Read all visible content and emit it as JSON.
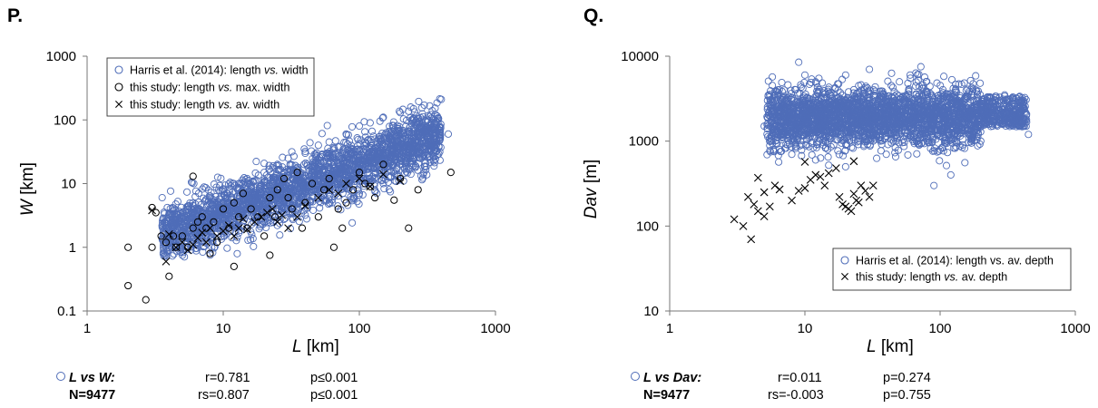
{
  "chart_data": [
    {
      "panel": "P.",
      "type": "scatter",
      "xscale": "log",
      "yscale": "log",
      "xlim": [
        1,
        1000
      ],
      "ylim": [
        0.1,
        1000
      ],
      "xticks": [
        "1",
        "10",
        "100",
        "1000"
      ],
      "yticks": [
        "0.1",
        "1",
        "10",
        "100",
        "1000"
      ],
      "xlabel": "L",
      "xlabel_unit": "[km]",
      "ylabel": "W",
      "ylabel_unit": "[km]",
      "legend_position": "top-left",
      "series": [
        {
          "name_parts": [
            "Harris et al. (2014): length ",
            "vs.",
            " width"
          ],
          "marker": "open-circle",
          "color": "#4f6db8",
          "description_of_cloud": "dense cloud, approx. L 4-450 km, W 0.7-220 km",
          "points": [
            [
              5,
              3.2
            ],
            [
              6,
              4.5
            ],
            [
              8,
              6
            ],
            [
              10,
              8
            ],
            [
              12,
              10
            ],
            [
              15,
              12
            ],
            [
              20,
              15
            ],
            [
              25,
              20
            ],
            [
              30,
              25
            ],
            [
              40,
              30
            ],
            [
              50,
              40
            ],
            [
              60,
              45
            ],
            [
              80,
              60
            ],
            [
              100,
              80
            ],
            [
              120,
              90
            ],
            [
              150,
              110
            ],
            [
              200,
              130
            ],
            [
              250,
              150
            ],
            [
              300,
              170
            ],
            [
              400,
              210
            ],
            [
              5,
              1.5
            ],
            [
              8,
              2.2
            ],
            [
              12,
              2.5
            ],
            [
              20,
              3
            ],
            [
              30,
              4
            ],
            [
              50,
              6
            ],
            [
              80,
              9
            ],
            [
              120,
              12
            ],
            [
              200,
              20
            ],
            [
              300,
              35
            ],
            [
              10,
              1.8
            ],
            [
              15,
              2
            ],
            [
              25,
              2.2
            ],
            [
              40,
              3.2
            ],
            [
              60,
              5
            ],
            [
              100,
              7
            ],
            [
              150,
              10
            ],
            [
              250,
              25
            ],
            [
              350,
              50
            ],
            [
              450,
              60
            ],
            [
              7,
              3.5
            ],
            [
              9,
              4
            ],
            [
              11,
              5
            ],
            [
              14,
              6
            ],
            [
              18,
              7
            ],
            [
              22,
              9
            ],
            [
              28,
              11
            ],
            [
              35,
              14
            ],
            [
              45,
              18
            ],
            [
              55,
              22
            ],
            [
              65,
              25
            ],
            [
              75,
              30
            ],
            [
              90,
              35
            ],
            [
              110,
              45
            ],
            [
              130,
              50
            ],
            [
              160,
              60
            ],
            [
              180,
              70
            ],
            [
              220,
              80
            ],
            [
              270,
              90
            ],
            [
              320,
              100
            ]
          ]
        },
        {
          "name_parts": [
            "this study: length ",
            "vs.",
            " max. width"
          ],
          "marker": "open-circle",
          "color": "#000000",
          "points": [
            [
              2,
              0.25
            ],
            [
              2,
              1
            ],
            [
              2.7,
              0.15
            ],
            [
              3,
              1
            ],
            [
              3,
              4.2
            ],
            [
              3.2,
              3.5
            ],
            [
              3.5,
              1.5
            ],
            [
              3.8,
              1.2
            ],
            [
              4,
              0.35
            ],
            [
              4.3,
              1.5
            ],
            [
              4.5,
              1
            ],
            [
              5,
              1.5
            ],
            [
              5.5,
              1
            ],
            [
              6,
              13
            ],
            [
              6,
              2
            ],
            [
              6.5,
              2.5
            ],
            [
              7,
              3
            ],
            [
              7.5,
              2
            ],
            [
              8,
              0.8
            ],
            [
              8.5,
              2.5
            ],
            [
              9,
              1.2
            ],
            [
              10,
              4
            ],
            [
              11,
              2
            ],
            [
              12,
              0.5
            ],
            [
              12,
              5
            ],
            [
              13,
              3
            ],
            [
              14,
              7
            ],
            [
              15,
              2
            ],
            [
              16,
              4
            ],
            [
              18,
              3
            ],
            [
              20,
              1.5
            ],
            [
              22,
              0.75
            ],
            [
              22,
              6
            ],
            [
              24,
              3
            ],
            [
              25,
              8
            ],
            [
              28,
              12
            ],
            [
              30,
              6
            ],
            [
              32,
              4
            ],
            [
              35,
              15
            ],
            [
              38,
              2
            ],
            [
              40,
              5
            ],
            [
              45,
              10
            ],
            [
              50,
              3
            ],
            [
              55,
              8
            ],
            [
              60,
              12
            ],
            [
              65,
              1
            ],
            [
              70,
              4
            ],
            [
              75,
              2
            ],
            [
              80,
              5
            ],
            [
              90,
              8
            ],
            [
              100,
              15
            ],
            [
              110,
              10
            ],
            [
              120,
              9
            ],
            [
              130,
              6
            ],
            [
              150,
              20
            ],
            [
              180,
              5.5
            ],
            [
              200,
              12
            ],
            [
              230,
              2
            ],
            [
              270,
              8
            ],
            [
              470,
              15
            ]
          ]
        },
        {
          "name_parts": [
            "this study: length ",
            "vs.",
            " av. width"
          ],
          "marker": "x",
          "color": "#000000",
          "points": [
            [
              3,
              3.8
            ],
            [
              3.8,
              0.6
            ],
            [
              4,
              1.6
            ],
            [
              4.5,
              1
            ],
            [
              5,
              1.2
            ],
            [
              5.5,
              0.9
            ],
            [
              6,
              1.1
            ],
            [
              6.5,
              1.4
            ],
            [
              7,
              1.7
            ],
            [
              7.5,
              1.2
            ],
            [
              8,
              2
            ],
            [
              9,
              1.5
            ],
            [
              10,
              1.8
            ],
            [
              11,
              2.2
            ],
            [
              12,
              1.5
            ],
            [
              13,
              2
            ],
            [
              14,
              2.8
            ],
            [
              15,
              1.9
            ],
            [
              17,
              2.5
            ],
            [
              19,
              3
            ],
            [
              21,
              3.5
            ],
            [
              23,
              4
            ],
            [
              25,
              2.5
            ],
            [
              27,
              3.2
            ],
            [
              30,
              2
            ],
            [
              35,
              3
            ],
            [
              40,
              4.5
            ],
            [
              50,
              6
            ],
            [
              60,
              8
            ],
            [
              70,
              7
            ],
            [
              80,
              10
            ],
            [
              100,
              12
            ],
            [
              120,
              9
            ],
            [
              150,
              14
            ],
            [
              200,
              11
            ]
          ]
        }
      ]
    },
    {
      "panel": "Q.",
      "type": "scatter",
      "xscale": "log",
      "yscale": "log",
      "xlim": [
        1,
        1000
      ],
      "ylim": [
        10,
        10000
      ],
      "xticks": [
        "1",
        "10",
        "100",
        "1000"
      ],
      "yticks": [
        "10",
        "100",
        "1000",
        "10000"
      ],
      "xlabel": "L",
      "xlabel_unit": "[km]",
      "ylabel": "Dav",
      "ylabel_unit": "[m]",
      "legend_position": "bottom-right",
      "series": [
        {
          "name_parts": [
            "Harris et al. (2014): length vs. av. depth"
          ],
          "marker": "open-circle",
          "color": "#4f6db8",
          "description_of_cloud": "dense cloud, approx. L 5-450 km, Dav 300-8500 m",
          "points": [
            [
              5,
              1500
            ],
            [
              6,
              3000
            ],
            [
              7,
              1200
            ],
            [
              8,
              2500
            ],
            [
              9,
              8500
            ],
            [
              10,
              2000
            ],
            [
              12,
              5000
            ],
            [
              15,
              1800
            ],
            [
              20,
              6000
            ],
            [
              25,
              2200
            ],
            [
              30,
              7000
            ],
            [
              40,
              2500
            ],
            [
              50,
              5000
            ],
            [
              60,
              2000
            ],
            [
              70,
              3500
            ],
            [
              80,
              1500
            ],
            [
              100,
              2500
            ],
            [
              120,
              3000
            ],
            [
              150,
              2000
            ],
            [
              200,
              2800
            ],
            [
              250,
              2500
            ],
            [
              300,
              3500
            ],
            [
              400,
              2000
            ],
            [
              450,
              1200
            ],
            [
              8,
              700
            ],
            [
              12,
              600
            ],
            [
              20,
              500
            ],
            [
              40,
              700
            ],
            [
              70,
              900
            ],
            [
              100,
              800
            ],
            [
              200,
              1000
            ],
            [
              90,
              300
            ],
            [
              120,
              400
            ],
            [
              7,
              4000
            ],
            [
              10,
              6000
            ],
            [
              15,
              3000
            ],
            [
              25,
              4500
            ],
            [
              35,
              3000
            ],
            [
              50,
              1200
            ],
            [
              60,
              6000
            ]
          ]
        },
        {
          "name_parts": [
            "this study: length ",
            "vs.",
            " av. depth"
          ],
          "marker": "x",
          "color": "#000000",
          "points": [
            [
              3,
              120
            ],
            [
              3.5,
              100
            ],
            [
              3.8,
              220
            ],
            [
              4,
              70
            ],
            [
              4.2,
              180
            ],
            [
              4.5,
              150
            ],
            [
              4.5,
              370
            ],
            [
              5,
              130
            ],
            [
              5,
              250
            ],
            [
              5.5,
              170
            ],
            [
              6,
              300
            ],
            [
              6.5,
              270
            ],
            [
              8,
              200
            ],
            [
              9,
              260
            ],
            [
              10,
              280
            ],
            [
              10,
              570
            ],
            [
              11,
              350
            ],
            [
              12,
              400
            ],
            [
              13,
              380
            ],
            [
              15,
              420
            ],
            [
              18,
              220
            ],
            [
              19,
              180
            ],
            [
              20,
              170
            ],
            [
              21,
              160
            ],
            [
              22,
              150
            ],
            [
              23,
              240
            ],
            [
              24,
              200
            ],
            [
              25,
              190
            ],
            [
              28,
              260
            ],
            [
              30,
              220
            ],
            [
              32,
              300
            ],
            [
              23,
              580
            ],
            [
              17,
              480
            ],
            [
              14,
              300
            ],
            [
              26,
              300
            ]
          ]
        }
      ]
    }
  ],
  "stats": [
    {
      "series_label_parts": [
        "L vs W:"
      ],
      "n_label": "N=9477",
      "r": "r=0.781",
      "p1": "p≤0.001",
      "rs": "rs=0.807",
      "p2": "p≤0.001"
    },
    {
      "series_label_parts": [
        "L vs Dav:"
      ],
      "n_label": "N=9477",
      "r": "r=0.011",
      "p1": "p=0.274",
      "rs": "rs=-0.003",
      "p2": "p=0.755"
    }
  ]
}
